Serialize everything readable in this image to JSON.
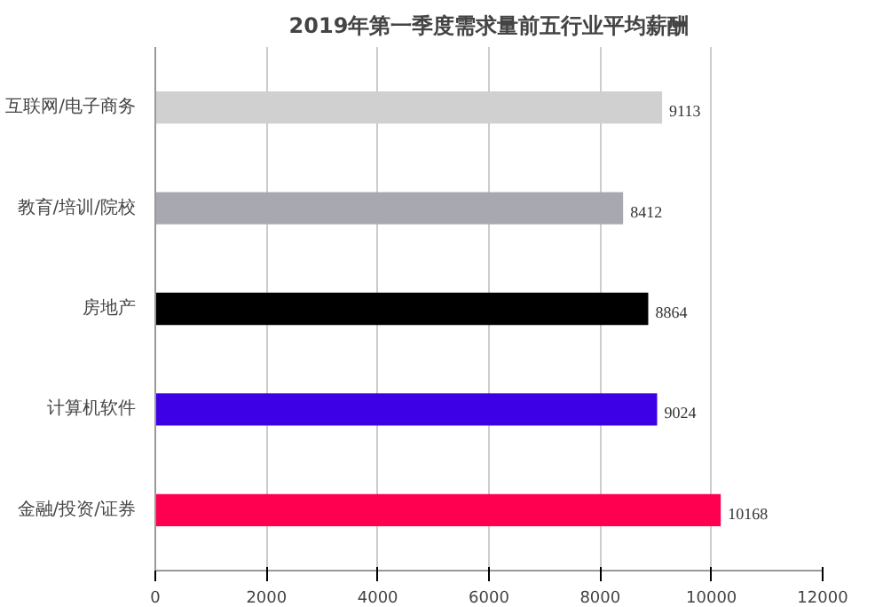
{
  "chart_data": {
    "type": "bar",
    "orientation": "horizontal",
    "title": "2019年第一季度需求量前五行业平均薪酬",
    "categories": [
      "互联网/电子商务",
      "教育/培训/院校",
      "房地产",
      "计算机软件",
      "金融/投资/证券"
    ],
    "values": [
      9113,
      8412,
      8864,
      9024,
      10168
    ],
    "colors": [
      "#d0d0d0",
      "#a8a8b0",
      "#000000",
      "#3d00e6",
      "#ff0050"
    ],
    "xlim": [
      0,
      12000
    ],
    "xticks": [
      0,
      2000,
      4000,
      6000,
      8000,
      10000,
      12000
    ],
    "grid": "x",
    "data_labels": true
  }
}
